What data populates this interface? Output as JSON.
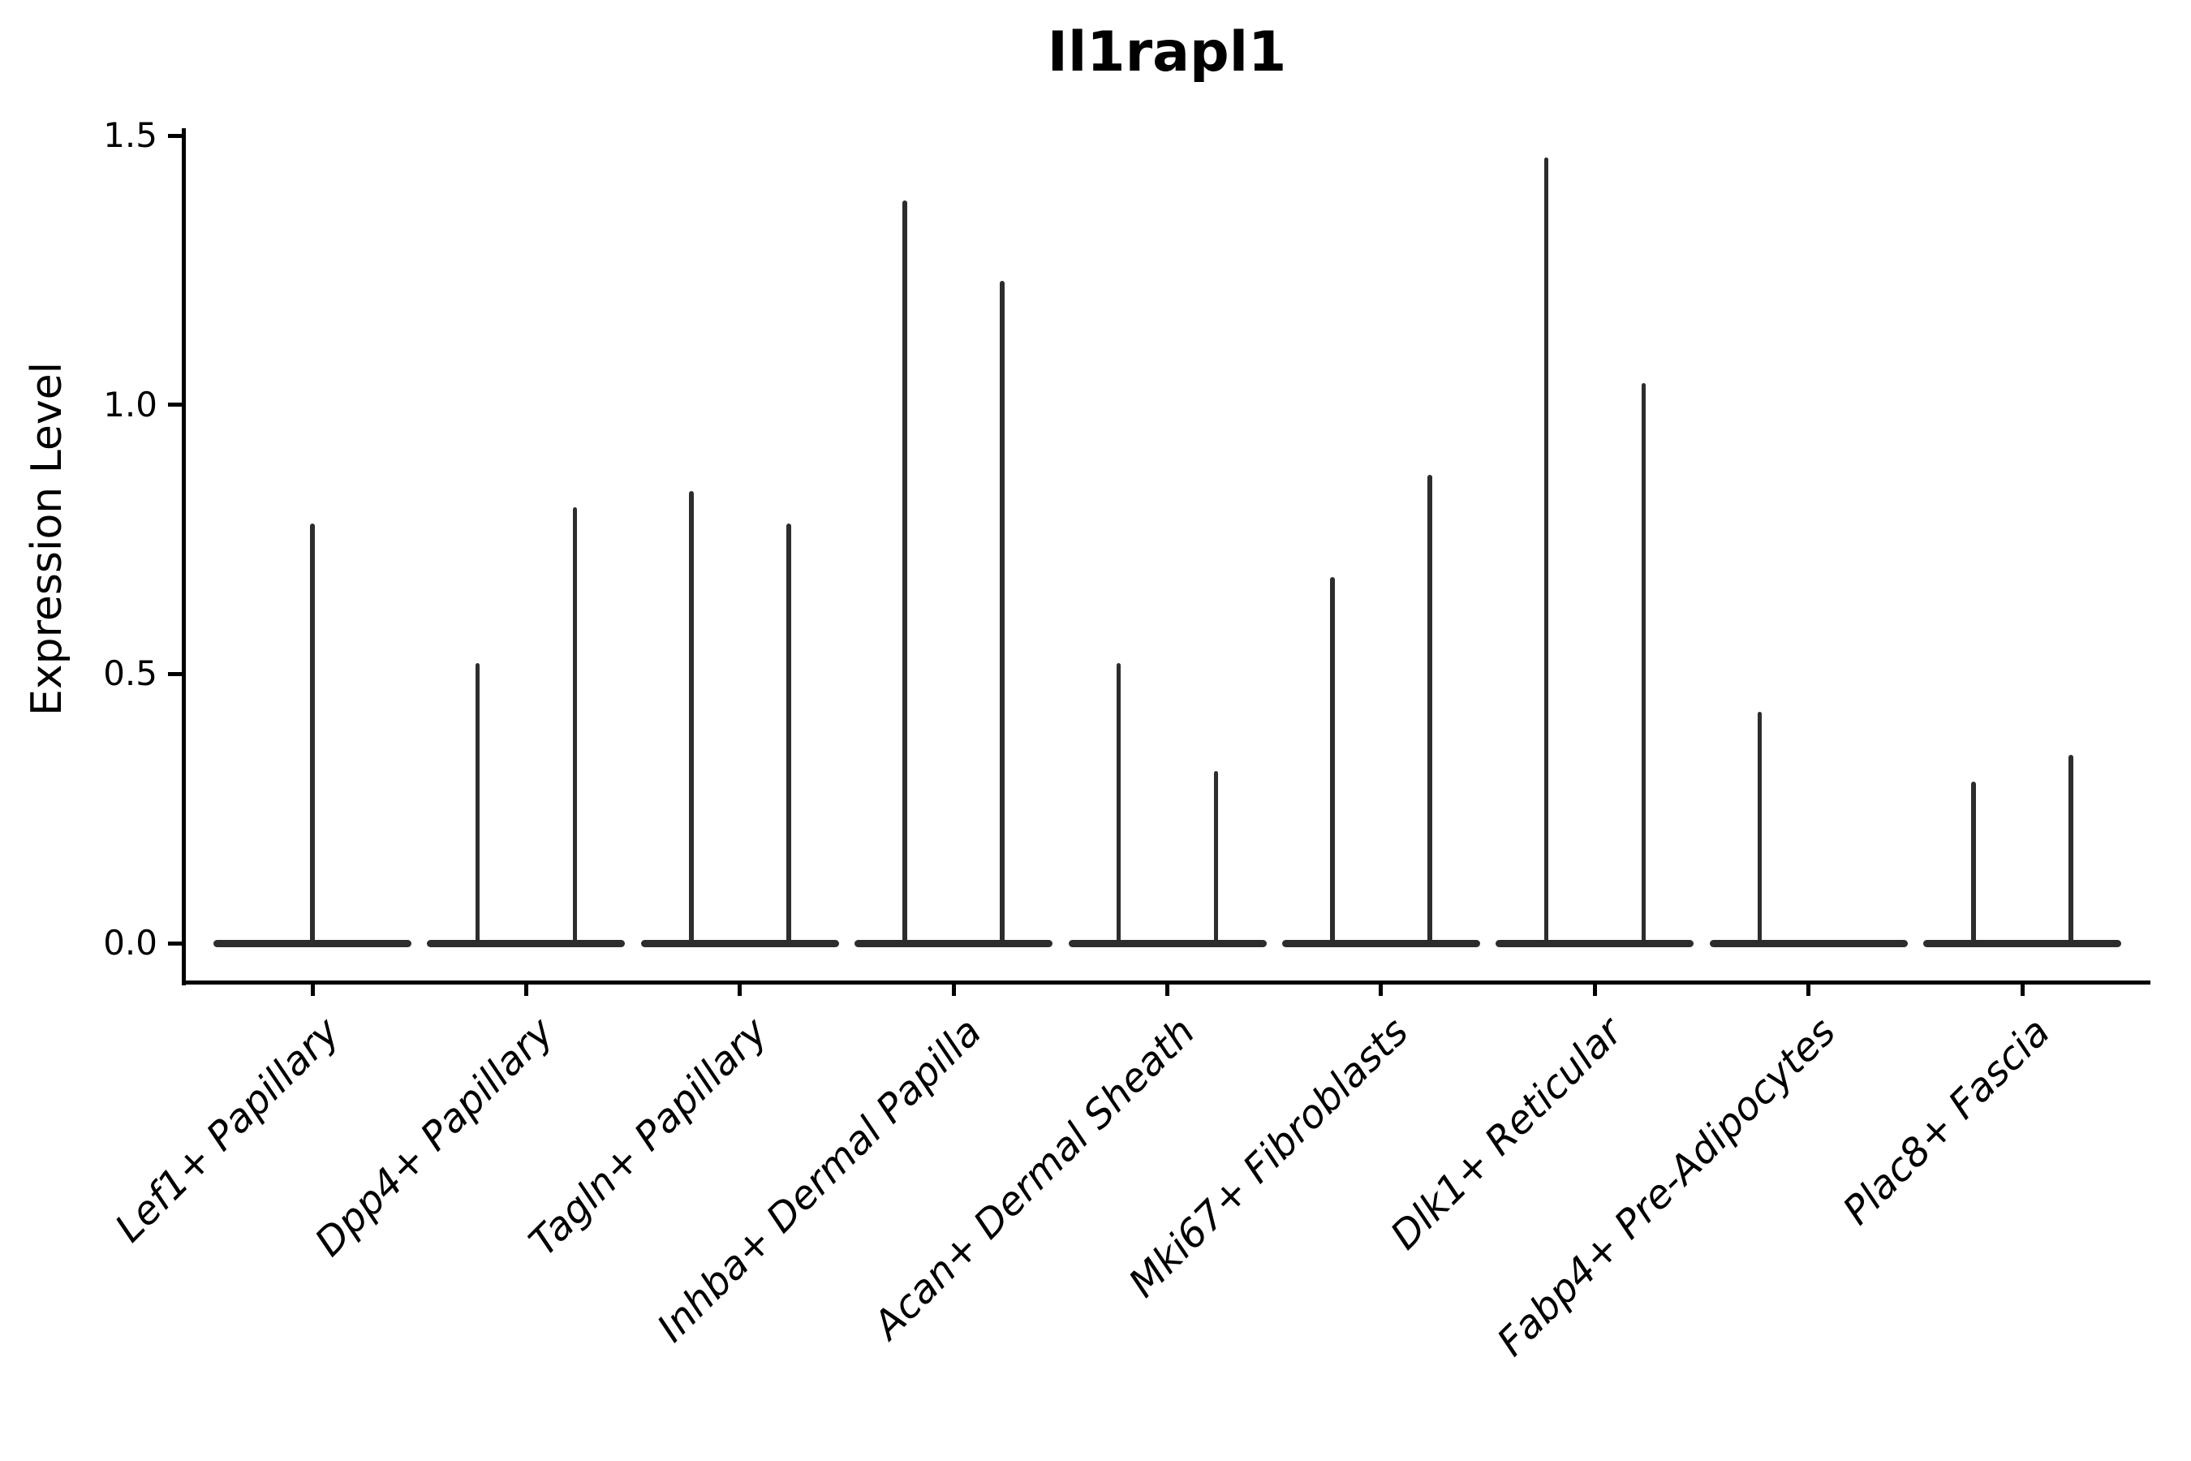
{
  "chart_data": {
    "type": "violin",
    "title": "Il1rapl1",
    "ylabel": "Expression Level",
    "xlabel": "",
    "ylim": [
      0,
      1.5
    ],
    "yticks": [
      0.0,
      0.5,
      1.0,
      1.5
    ],
    "ytick_labels": [
      "0.0",
      "0.5",
      "1.0",
      "1.5"
    ],
    "grid": "off",
    "legend": "none",
    "x_label_rotation": 45,
    "x_label_style": "italic",
    "violin_color": "#2d2d2d",
    "axis_color": "#000000",
    "categories": [
      "Lef1+ Papillary",
      "Dpp4+ Papillary",
      "Tagln+ Papillary",
      "Inhba+ Dermal Papilla",
      "Acan+ Dermal Sheath",
      "Mki67+ Fibroblasts",
      "Dlk1+ Reticular",
      "Fabp4+ Pre-Adipocytes",
      "Plac8+ Fascia"
    ],
    "violins": [
      {
        "category_index": 0,
        "category": "Lef1+ Papillary",
        "position": "center",
        "max_expression": 0.78
      },
      {
        "category_index": 1,
        "category": "Dpp4+ Papillary",
        "position": "left",
        "max_expression": 0.52
      },
      {
        "category_index": 1,
        "category": "Dpp4+ Papillary",
        "position": "right",
        "max_expression": 0.81
      },
      {
        "category_index": 2,
        "category": "Tagln+ Papillary",
        "position": "left",
        "max_expression": 0.84
      },
      {
        "category_index": 2,
        "category": "Tagln+ Papillary",
        "position": "right",
        "max_expression": 0.78
      },
      {
        "category_index": 3,
        "category": "Inhba+ Dermal Papilla",
        "position": "left",
        "max_expression": 1.38
      },
      {
        "category_index": 3,
        "category": "Inhba+ Dermal Papilla",
        "position": "right",
        "max_expression": 1.23
      },
      {
        "category_index": 4,
        "category": "Acan+ Dermal Sheath",
        "position": "left",
        "max_expression": 0.52
      },
      {
        "category_index": 4,
        "category": "Acan+ Dermal Sheath",
        "position": "right",
        "max_expression": 0.32
      },
      {
        "category_index": 5,
        "category": "Mki67+ Fibroblasts",
        "position": "left",
        "max_expression": 0.68
      },
      {
        "category_index": 5,
        "category": "Mki67+ Fibroblasts",
        "position": "right",
        "max_expression": 0.87
      },
      {
        "category_index": 6,
        "category": "Dlk1+ Reticular",
        "position": "left",
        "max_expression": 1.46
      },
      {
        "category_index": 6,
        "category": "Dlk1+ Reticular",
        "position": "right",
        "max_expression": 1.04
      },
      {
        "category_index": 7,
        "category": "Fabp4+ Pre-Adipocytes",
        "position": "left",
        "max_expression": 0.43
      },
      {
        "category_index": 8,
        "category": "Plac8+ Fascia",
        "position": "left",
        "max_expression": 0.3
      },
      {
        "category_index": 8,
        "category": "Plac8+ Fascia",
        "position": "right",
        "max_expression": 0.35
      }
    ],
    "note": "Each category shows a baseline band at 0 (density mass at zero) with thin spikes up to the max expression; dodged left/right spikes per category."
  }
}
